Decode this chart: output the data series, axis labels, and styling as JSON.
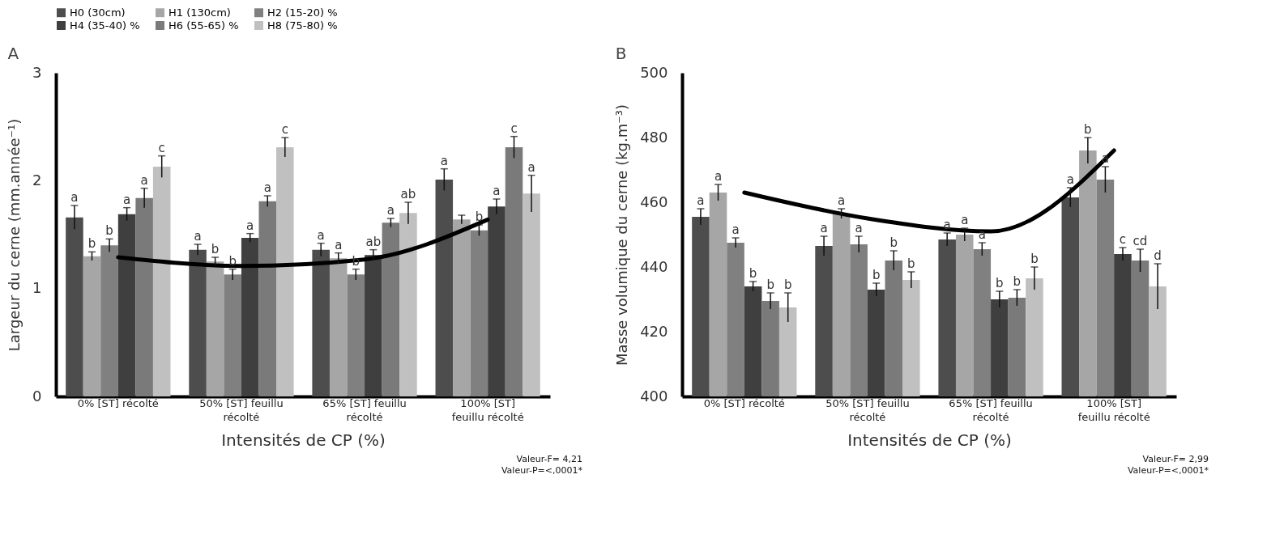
{
  "chart_data": [
    {
      "type": "bar",
      "title": "A",
      "xlabel": "Intensités de CP (%)",
      "ylabel": "Largeur du cerne (mm.année⁻¹)",
      "categories": [
        "0% [ST] récolté",
        "50% [ST] feuillu récolté",
        "65% [ST] feuillu récolté",
        "100% [ST] feuillu récolté"
      ],
      "ylim": [
        0,
        3
      ],
      "yticks": [
        0,
        1,
        2,
        3
      ],
      "legend": "top",
      "annotations": [
        "Valeur-F= 4,21",
        "Valeur-P=<,0001*"
      ],
      "series": [
        {
          "name": "H0 (30cm)",
          "color": "#4d4d4d",
          "values": [
            1.66,
            1.36,
            1.36,
            2.01
          ],
          "errors": [
            0.11,
            0.05,
            0.06,
            0.1
          ],
          "value_labels": [
            "a",
            "a",
            "a",
            "a"
          ]
        },
        {
          "name": "H1 (130cm)",
          "color": "#a6a6a6",
          "values": [
            1.3,
            1.25,
            1.28,
            1.64
          ],
          "errors": [
            0.04,
            0.04,
            0.05,
            0.04
          ],
          "value_labels": [
            "b",
            "b",
            "a",
            null
          ]
        },
        {
          "name": "H2 (15-20) %",
          "color": "#808080",
          "values": [
            1.4,
            1.13,
            1.13,
            1.54
          ],
          "errors": [
            0.06,
            0.05,
            0.05,
            0.05
          ],
          "value_labels": [
            "b",
            "b",
            "b",
            "b"
          ]
        },
        {
          "name": "H4 (35-40) %",
          "color": "#3f3f3f",
          "values": [
            1.69,
            1.47,
            1.31,
            1.76
          ],
          "errors": [
            0.06,
            0.04,
            0.05,
            0.07
          ],
          "value_labels": [
            "a",
            "a",
            "ab",
            "a"
          ]
        },
        {
          "name": "H6 (55-65) %",
          "color": "#7a7a7a",
          "values": [
            1.84,
            1.81,
            1.61,
            2.31
          ],
          "errors": [
            0.09,
            0.05,
            0.04,
            0.1
          ],
          "value_labels": [
            "a",
            "a",
            "a",
            "c"
          ]
        },
        {
          "name": "H8 (75-80) %",
          "color": "#c0c0c0",
          "values": [
            2.13,
            2.31,
            1.7,
            1.88
          ],
          "errors": [
            0.1,
            0.09,
            0.1,
            0.17
          ],
          "value_labels": [
            "c",
            "c",
            "ab",
            "a"
          ]
        },
        {
          "type": "line",
          "color": "#000000",
          "values": [
            1.29,
            1.21,
            1.27,
            1.64
          ]
        }
      ]
    },
    {
      "type": "bar",
      "title": "B",
      "xlabel": "Intensités de CP (%)",
      "ylabel": "Masse volumique du cerne (kg.m⁻³)",
      "categories": [
        "0% [ST] récolté",
        "50% [ST] feuillu récolté",
        "65% [ST] feuillu récolté",
        "100% [ST] feuillu récolté"
      ],
      "ylim": [
        400,
        500
      ],
      "yticks": [
        400,
        420,
        440,
        460,
        480,
        500
      ],
      "legend": "top",
      "annotations": [
        "Valeur-F= 2,99",
        "Valeur-P=<,0001*"
      ],
      "series": [
        {
          "name": "H0 (30cm)",
          "color": "#4d4d4d",
          "values": [
            455.5,
            446.5,
            448.5,
            461.5
          ],
          "errors": [
            2.5,
            3,
            2,
            3
          ],
          "value_labels": [
            "a",
            "a",
            "a",
            "a"
          ]
        },
        {
          "name": "H1 (130cm)",
          "color": "#a6a6a6",
          "values": [
            463,
            456.5,
            450,
            476
          ],
          "errors": [
            2.5,
            1.5,
            2,
            4
          ],
          "value_labels": [
            "a",
            "a",
            "a",
            "b"
          ]
        },
        {
          "name": "H2 (15-20) %",
          "color": "#808080",
          "values": [
            447.5,
            447,
            445.5,
            467
          ],
          "errors": [
            1.5,
            2.5,
            2,
            4
          ],
          "value_labels": [
            "a",
            "a",
            "a",
            "a"
          ]
        },
        {
          "name": "H4 (35-40) %",
          "color": "#3f3f3f",
          "values": [
            434,
            433,
            430,
            444
          ],
          "errors": [
            1.5,
            2,
            2.5,
            2
          ],
          "value_labels": [
            "b",
            "b",
            "b",
            "c"
          ]
        },
        {
          "name": "H6 (55-65) %",
          "color": "#7a7a7a",
          "values": [
            429.5,
            442,
            430.5,
            442
          ],
          "errors": [
            2.5,
            3,
            2.5,
            3.5
          ],
          "value_labels": [
            "b",
            "b",
            "b",
            "cd"
          ]
        },
        {
          "name": "H8 (75-80) %",
          "color": "#c0c0c0",
          "values": [
            427.5,
            436,
            436.5,
            434
          ],
          "errors": [
            4.5,
            2.5,
            3.5,
            7
          ],
          "value_labels": [
            "b",
            "b",
            "b",
            "d"
          ]
        },
        {
          "type": "line",
          "color": "#000000",
          "values": [
            463,
            455,
            451,
            476
          ]
        }
      ]
    }
  ]
}
